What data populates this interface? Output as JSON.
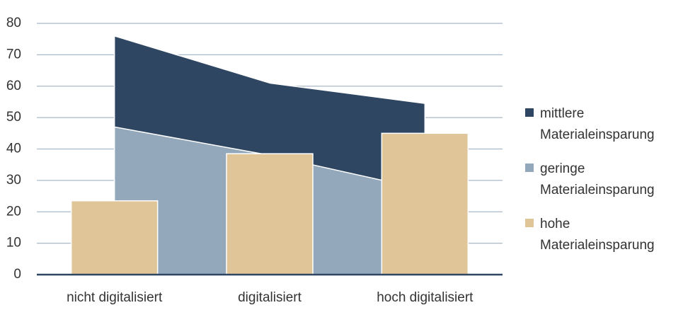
{
  "chart_data": {
    "type": "combo",
    "categories": [
      "nicht digitalisiert",
      "digitalisiert",
      "hoch digitalisiert"
    ],
    "series": [
      {
        "name": "mittlere Materialeinsparung",
        "type": "area",
        "color": "#2e4662",
        "values": [
          76,
          61,
          54.5
        ]
      },
      {
        "name": "geringe Materialeinsparung",
        "type": "area",
        "color": "#94a8bb",
        "values": [
          47,
          38,
          27
        ]
      },
      {
        "name": "hohe Materialeinsparung",
        "type": "bar",
        "color": "#dfc597",
        "values": [
          23.5,
          38.5,
          45
        ]
      }
    ],
    "ylim": [
      0,
      80
    ],
    "yticks": [
      0,
      10,
      20,
      30,
      40,
      50,
      60,
      70,
      80
    ],
    "grid": true,
    "legend": "right"
  }
}
